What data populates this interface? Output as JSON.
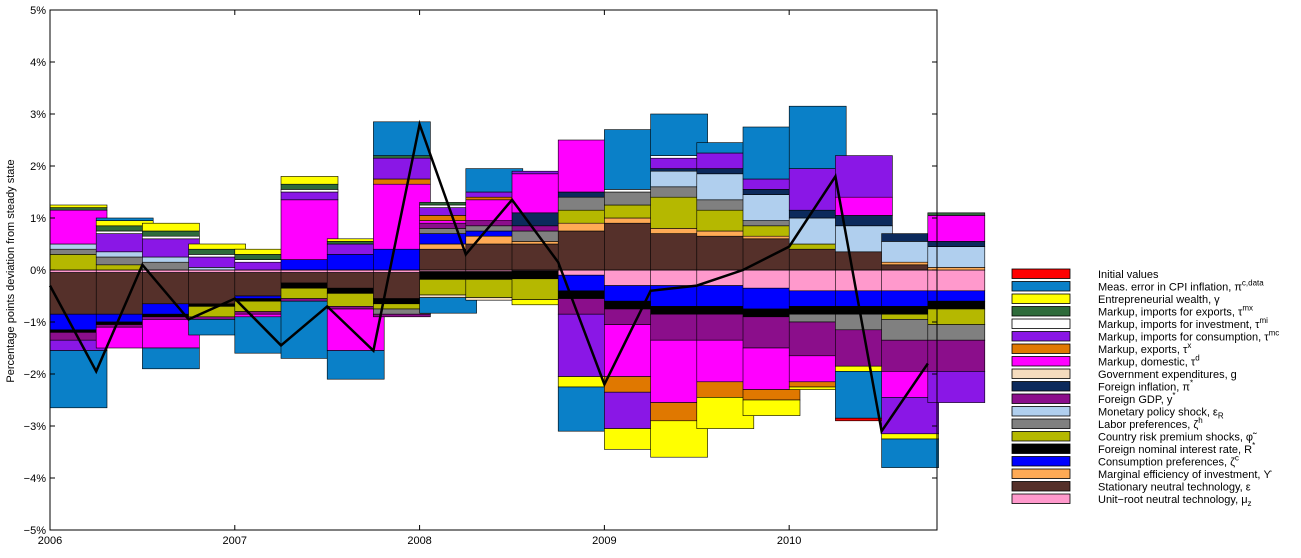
{
  "chart_data": {
    "type": "bar",
    "stacked": true,
    "ylabel": "Percentage points deviation from steady state",
    "xlabel": "",
    "ylim": [
      -5,
      5
    ],
    "yticks": [
      -5,
      -4,
      -3,
      -2,
      -1,
      0,
      1,
      2,
      3,
      4,
      5
    ],
    "ytick_labels": [
      "−5%",
      "−4%",
      "−3%",
      "−2%",
      "−1%",
      "0%",
      "1%",
      "2%",
      "3%",
      "4%",
      "5%"
    ],
    "xlim": [
      2006.0,
      2010.8
    ],
    "xticks": [
      2006,
      2007,
      2008,
      2009,
      2010
    ],
    "xtick_labels": [
      "2006",
      "2007",
      "2008",
      "2009",
      "2010"
    ],
    "x": [
      2006.0,
      2006.25,
      2006.5,
      2006.75,
      2007.0,
      2007.25,
      2007.5,
      2007.75,
      2008.0,
      2008.25,
      2008.5,
      2008.75,
      2009.0,
      2009.25,
      2009.5,
      2009.75,
      2010.0,
      2010.25,
      2010.5,
      2010.75
    ],
    "line": {
      "name": "",
      "color": "#000000",
      "values": [
        -0.3,
        -1.95,
        0.1,
        -0.95,
        -0.55,
        -1.45,
        -0.7,
        -1.55,
        2.8,
        0.3,
        1.35,
        0.15,
        -2.2,
        -0.4,
        -0.3,
        0.0,
        0.45,
        1.8,
        -3.1,
        -1.8
      ]
    },
    "series": [
      {
        "name": "Unit−root neutral technology, μ",
        "sub": "z",
        "sup": "",
        "color": "#ff99cc",
        "values": [
          -0.05,
          -0.05,
          -0.05,
          -0.05,
          -0.05,
          -0.05,
          -0.05,
          -0.05,
          -0.03,
          -0.03,
          -0.02,
          -0.1,
          -0.3,
          -0.3,
          -0.3,
          -0.35,
          -0.4,
          -0.4,
          -0.4,
          -0.4
        ]
      },
      {
        "name": "Stationary neutral technology, ε",
        "sub": "",
        "sup": "",
        "color": "#55302a",
        "values": [
          -0.8,
          -0.8,
          -0.6,
          -0.6,
          -0.45,
          -0.2,
          -0.3,
          -0.5,
          0.4,
          0.5,
          0.5,
          0.75,
          0.9,
          0.7,
          0.65,
          0.6,
          0.4,
          0.35,
          0.1,
          0.0
        ]
      },
      {
        "name": "Marginal efficiency of investment, ϒ",
        "sub": "",
        "sup": "",
        "color": "#ffaa55",
        "values": [
          0.0,
          0.0,
          0.0,
          0.0,
          0.0,
          0.0,
          0.0,
          0.0,
          0.1,
          0.15,
          0.05,
          0.15,
          0.1,
          0.1,
          0.1,
          0.05,
          0.0,
          0.0,
          0.05,
          0.05
        ]
      },
      {
        "name": "Consumption preferences, ζ",
        "sub": "",
        "sup": "c",
        "color": "#0000ff",
        "values": [
          -0.3,
          -0.15,
          -0.2,
          0.0,
          -0.05,
          0.2,
          0.3,
          0.4,
          0.2,
          0.1,
          0.0,
          -0.3,
          -0.3,
          -0.4,
          -0.4,
          -0.4,
          -0.3,
          -0.3,
          -0.3,
          -0.2
        ]
      },
      {
        "name": "Foreign nominal interest rate, R",
        "sub": "",
        "sup": "*",
        "color": "#000000",
        "values": [
          -0.05,
          -0.05,
          -0.05,
          -0.05,
          -0.05,
          -0.1,
          -0.1,
          -0.1,
          -0.15,
          -0.15,
          -0.15,
          -0.15,
          -0.15,
          -0.15,
          -0.15,
          -0.15,
          -0.15,
          -0.15,
          -0.15,
          -0.15
        ]
      },
      {
        "name": "Country risk premium shocks, φ̃",
        "sub": "",
        "sup": "",
        "color": "#b5b800",
        "values": [
          0.3,
          0.1,
          0.0,
          -0.2,
          -0.2,
          -0.2,
          -0.25,
          -0.1,
          -0.3,
          -0.35,
          -0.4,
          0.25,
          0.25,
          0.6,
          0.4,
          0.2,
          0.1,
          0.0,
          -0.1,
          -0.3
        ]
      },
      {
        "name": "Labor preferences, ζ",
        "sub": "",
        "sup": "h",
        "color": "#808080",
        "values": [
          0.1,
          0.15,
          0.15,
          0.0,
          0.0,
          0.0,
          0.0,
          -0.1,
          0.1,
          0.1,
          0.2,
          0.25,
          0.25,
          0.2,
          0.2,
          0.1,
          -0.15,
          -0.3,
          -0.4,
          -0.3
        ]
      },
      {
        "name": "Monetary policy shock, ε",
        "sub": "R",
        "sup": "",
        "color": "#b0cfee",
        "values": [
          0.1,
          0.1,
          0.1,
          0.05,
          0.0,
          0.0,
          0.0,
          0.0,
          0.0,
          0.0,
          0.0,
          0.0,
          0.0,
          0.3,
          0.5,
          0.5,
          0.5,
          0.5,
          0.4,
          0.4
        ]
      },
      {
        "name": "Foreign GDP, y",
        "sub": "",
        "sup": "*",
        "color": "#8b0e8b",
        "values": [
          -0.15,
          -0.05,
          -0.05,
          -0.05,
          -0.05,
          -0.05,
          -0.05,
          -0.05,
          0.1,
          0.1,
          0.1,
          -0.3,
          -0.3,
          -0.5,
          -0.5,
          -0.6,
          -0.65,
          -0.7,
          -0.6,
          -0.6
        ]
      },
      {
        "name": "Foreign inflation, π",
        "sub": "",
        "sup": "*",
        "color": "#0c2a5c",
        "values": [
          0.0,
          0.0,
          0.0,
          0.0,
          0.0,
          0.0,
          0.0,
          0.0,
          0.0,
          0.0,
          0.25,
          0.1,
          0.0,
          0.05,
          0.1,
          0.1,
          0.15,
          0.2,
          0.15,
          0.1
        ]
      },
      {
        "name": "Government expenditures, g",
        "sub": "",
        "sup": "",
        "color": "#f5dcbe",
        "values": [
          0.0,
          0.0,
          0.0,
          0.0,
          0.0,
          0.0,
          0.0,
          0.0,
          -0.05,
          -0.05,
          0.0,
          0.0,
          0.0,
          0.0,
          0.0,
          0.0,
          0.0,
          0.0,
          0.0,
          0.0
        ]
      },
      {
        "name": "Markup, domestic, τ",
        "sub": "",
        "sup": "d",
        "color": "#ff00ff",
        "values": [
          0.65,
          -0.4,
          -0.55,
          0.0,
          -0.05,
          1.15,
          -0.8,
          1.25,
          0.05,
          0.4,
          0.75,
          1.0,
          -1.0,
          -1.2,
          -0.8,
          -0.8,
          -0.5,
          0.35,
          -0.5,
          0.5
        ]
      },
      {
        "name": "Markup, exports, τ",
        "sub": "",
        "sup": "x",
        "color": "#e07800",
        "values": [
          0.0,
          0.0,
          0.0,
          0.0,
          0.0,
          0.0,
          0.0,
          0.1,
          0.1,
          0.05,
          0.0,
          0.0,
          -0.3,
          -0.35,
          -0.3,
          -0.2,
          -0.1,
          0.0,
          0.0,
          0.0
        ]
      },
      {
        "name": "Markup, imports for consumption, τ",
        "sub": "",
        "sup": "mc",
        "color": "#8a17e6",
        "values": [
          -0.2,
          0.35,
          0.35,
          0.2,
          0.15,
          0.15,
          0.2,
          0.4,
          0.15,
          0.1,
          0.05,
          -1.2,
          -0.7,
          0.2,
          0.3,
          0.2,
          0.8,
          0.8,
          -0.7,
          -0.6
        ]
      },
      {
        "name": "Markup, imports for investment, τ",
        "sub": "",
        "sup": "mi",
        "color": "#ffffff",
        "values": [
          0.0,
          0.05,
          0.05,
          0.05,
          0.05,
          0.05,
          0.0,
          0.0,
          0.05,
          0.0,
          0.0,
          0.0,
          0.05,
          0.05,
          0.0,
          0.0,
          0.0,
          0.0,
          0.0,
          0.0
        ]
      },
      {
        "name": "Markup, imports for exports, τ",
        "sub": "",
        "sup": "mx",
        "color": "#2e6b3a",
        "values": [
          0.05,
          0.1,
          0.1,
          0.1,
          0.1,
          0.1,
          0.05,
          0.05,
          0.05,
          0.0,
          0.0,
          0.0,
          0.0,
          0.0,
          0.0,
          0.0,
          0.0,
          0.0,
          0.0,
          0.05
        ]
      },
      {
        "name": "Entrepreneurial wealth, γ",
        "sub": "",
        "sup": "",
        "color": "#ffff00",
        "values": [
          0.05,
          0.1,
          0.15,
          0.1,
          0.1,
          0.15,
          0.05,
          0.0,
          0.0,
          0.0,
          -0.1,
          -0.2,
          -0.4,
          -0.7,
          -0.6,
          -0.3,
          -0.05,
          -0.1,
          -0.1,
          0.0
        ]
      },
      {
        "name": "Meas. error in CPI inflation, π",
        "sub": "",
        "sup": "c,data",
        "color": "#0a80c8",
        "values": [
          -1.1,
          0.05,
          -0.4,
          -0.3,
          -0.7,
          -1.1,
          -0.55,
          0.65,
          -0.3,
          0.45,
          0.0,
          -0.85,
          1.15,
          0.8,
          0.2,
          1.0,
          1.2,
          -0.9,
          -0.55,
          0.0
        ]
      },
      {
        "name": "Initial values",
        "sub": "",
        "sup": "",
        "color": "#ff0000",
        "values": [
          0,
          0,
          0,
          0,
          0,
          0,
          0,
          0,
          0,
          0,
          0,
          0,
          0,
          0,
          0,
          0,
          0,
          -0.05,
          0,
          0
        ]
      }
    ],
    "legend_position": "right",
    "grid": false
  }
}
